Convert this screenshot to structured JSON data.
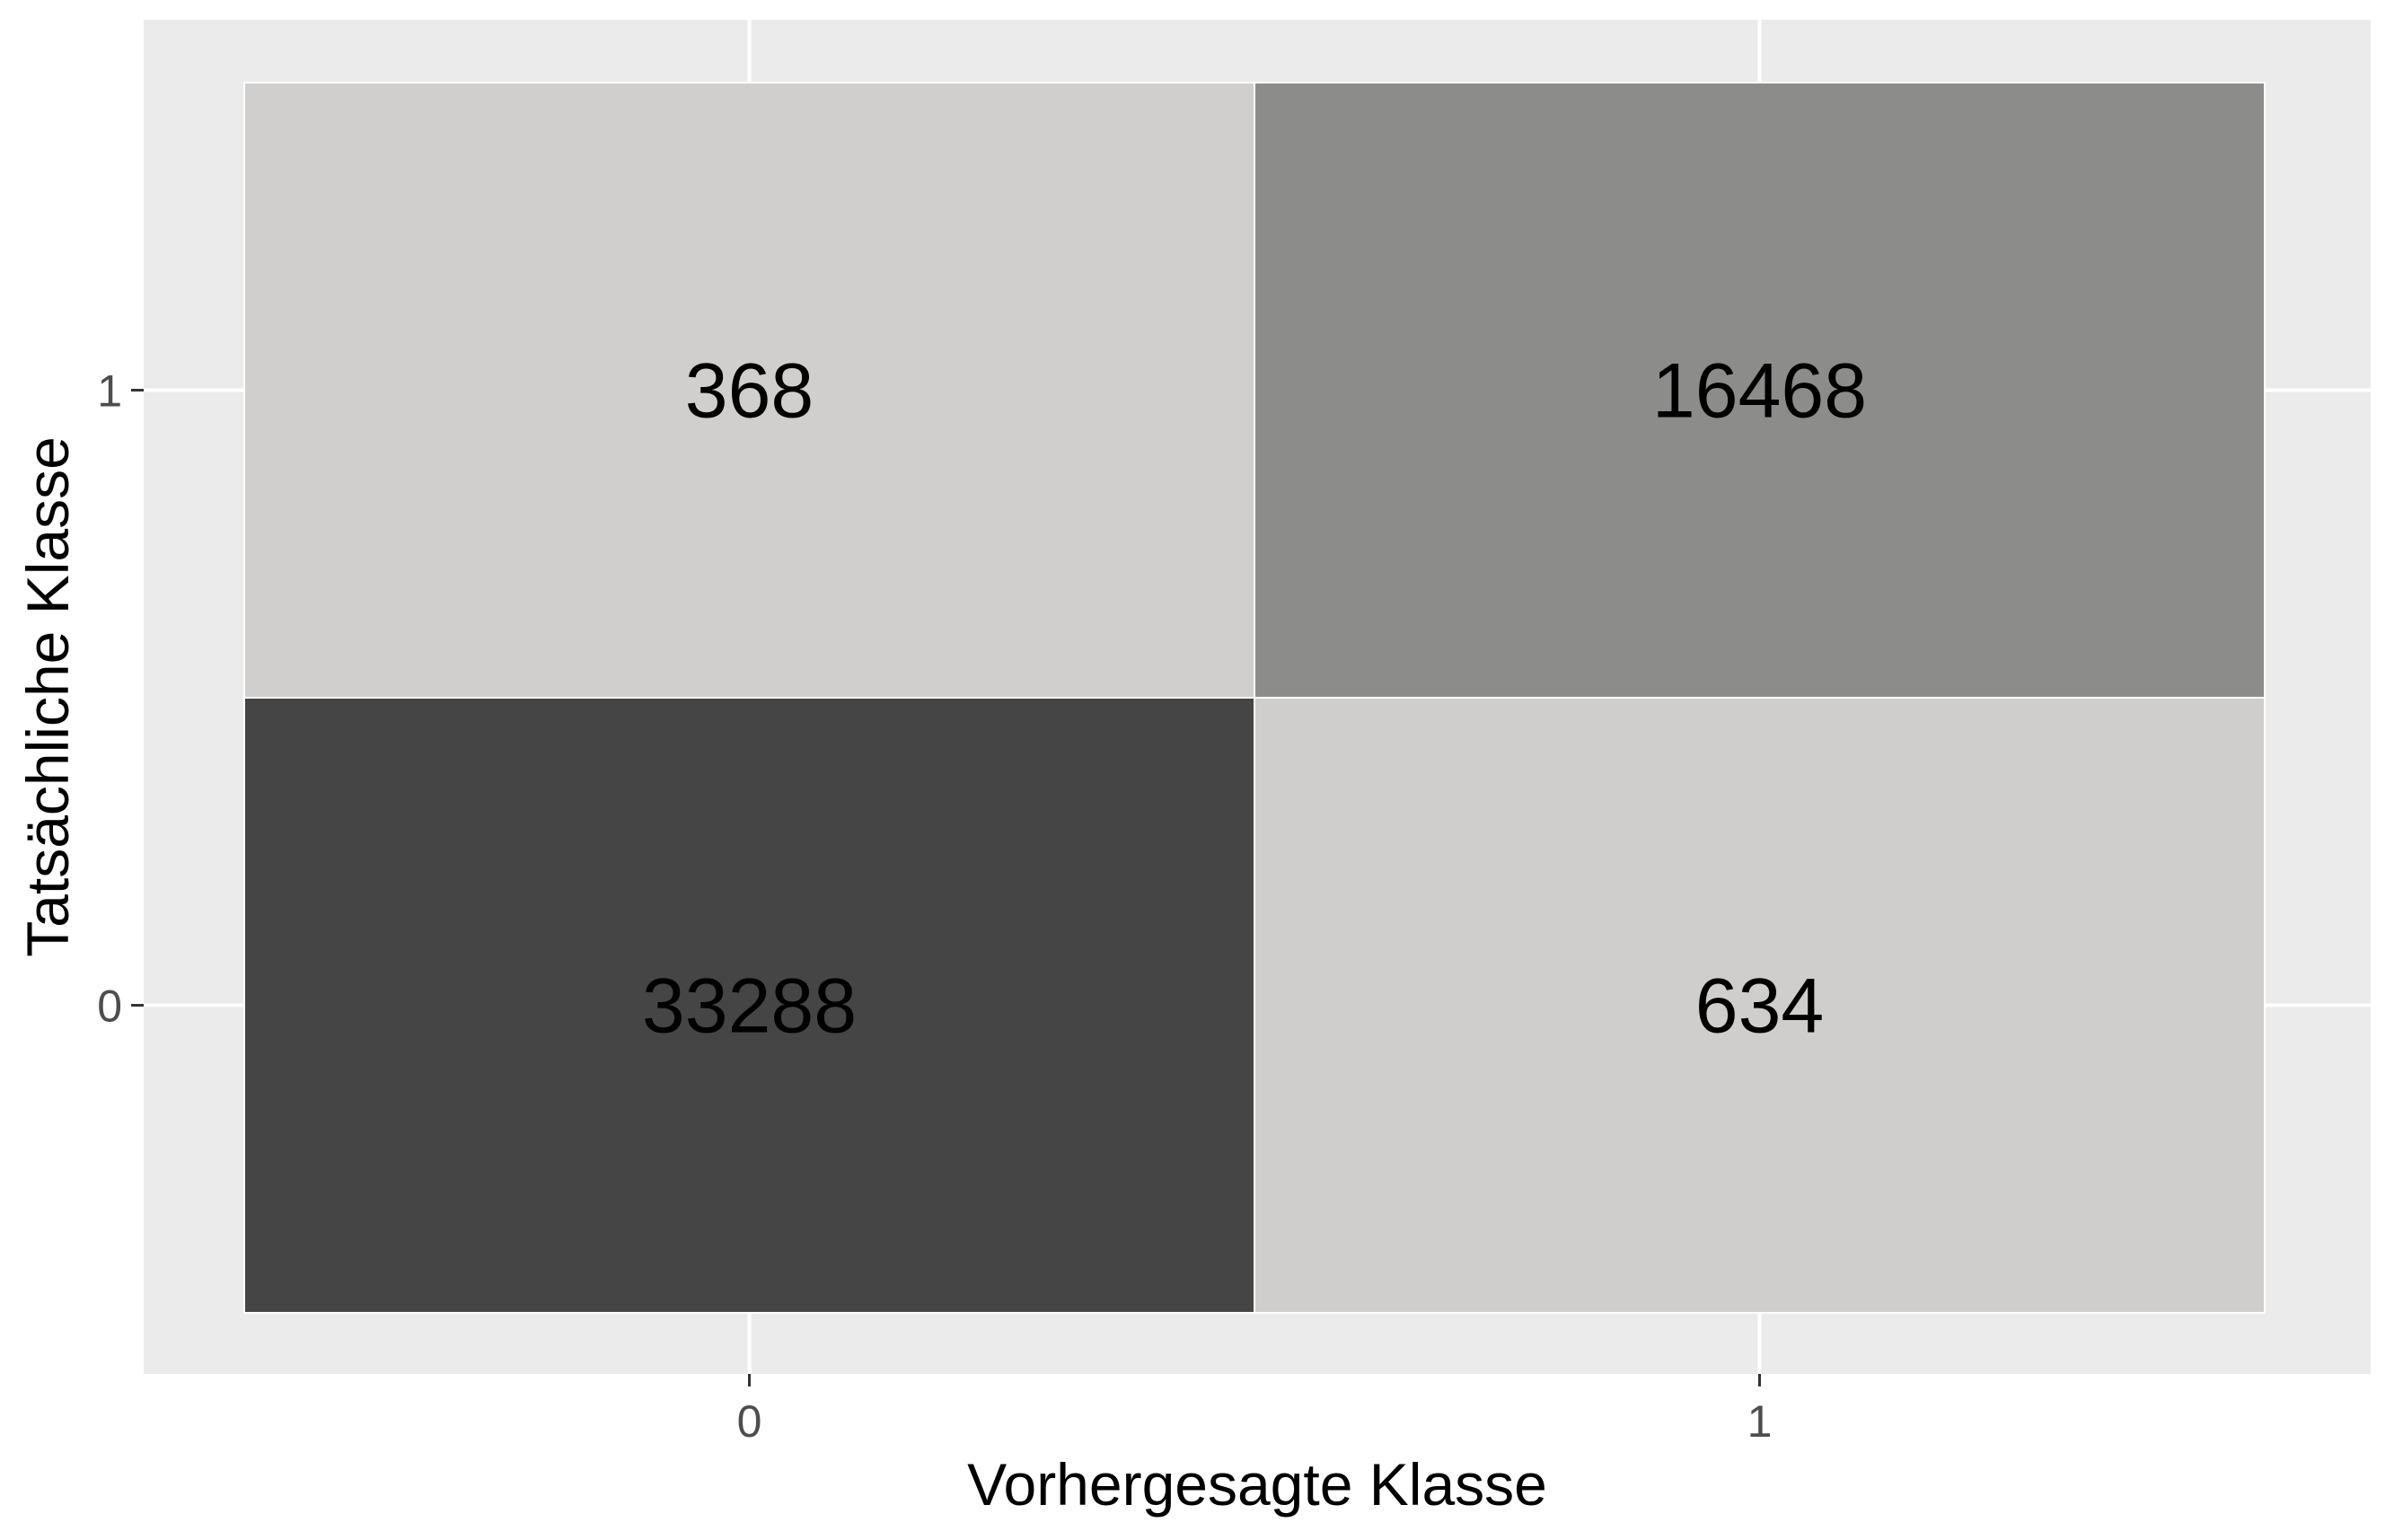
{
  "chart_data": {
    "type": "heatmap",
    "title": "",
    "xlabel": "Vorhergesagte Klasse",
    "ylabel": "Tatsächliche Klasse",
    "x_categories": [
      "0",
      "1"
    ],
    "y_categories": [
      "0",
      "1"
    ],
    "cells": [
      {
        "x": "0",
        "y": "1",
        "value": 368
      },
      {
        "x": "1",
        "y": "1",
        "value": 16468
      },
      {
        "x": "0",
        "y": "0",
        "value": 33288
      },
      {
        "x": "1",
        "y": "0",
        "value": 634
      }
    ],
    "color_scale": {
      "low": "#d0cfcd",
      "high": "#454545"
    },
    "panel_background": "#ebebeb",
    "grid_color": "#ffffff",
    "grid": true,
    "legend": "none"
  }
}
